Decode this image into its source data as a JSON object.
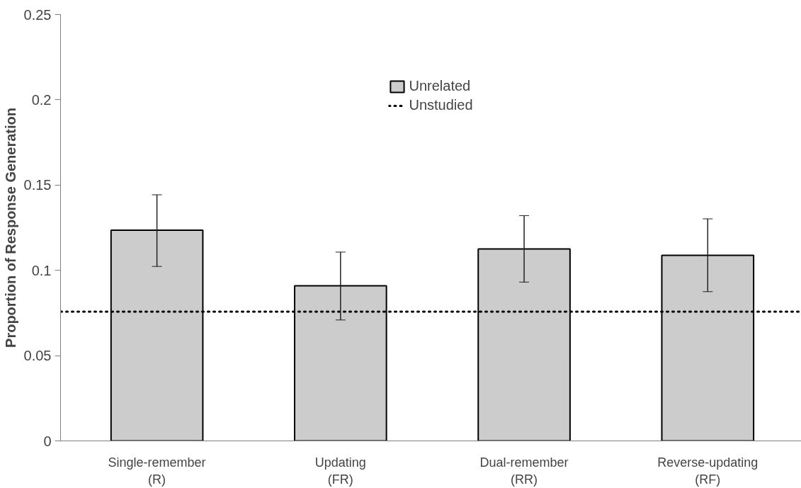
{
  "chart_data": {
    "type": "bar",
    "ylabel": "Proportion of Response Generation",
    "categories": [
      "Single-remember\n(R)",
      "Updating\n(FR)",
      "Dual-remember\n(RR)",
      "Reverse-updating\n(RF)"
    ],
    "series": [
      {
        "name": "Unrelated",
        "color": "#cccccc",
        "values": [
          0.1235,
          0.0909,
          0.1125,
          0.1088
        ],
        "errors": [
          [
            0.1023,
            0.1443
          ],
          [
            0.0709,
            0.1107
          ],
          [
            0.0931,
            0.1321
          ],
          [
            0.0875,
            0.1302
          ]
        ]
      }
    ],
    "ylim": [
      0,
      0.25
    ],
    "yticks": [
      0,
      0.05,
      {
        "value": 0.1,
        "label": "0.1"
      },
      0.15,
      {
        "value": 0.2,
        "label": "0.2"
      },
      0.25
    ],
    "ref_lines": [
      {
        "axis": "y",
        "value": 0.0758,
        "label": "Unstudied",
        "color": "#000000",
        "line_style": "dotted"
      }
    ],
    "grid": false,
    "legend": "top"
  }
}
